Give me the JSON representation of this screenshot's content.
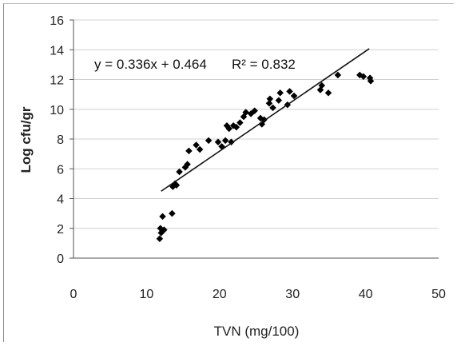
{
  "chart_data": {
    "type": "scatter",
    "xlabel": "TVN (mg/100)",
    "ylabel": "Log cfu/gr",
    "xlim": [
      0,
      50
    ],
    "ylim": [
      0,
      16
    ],
    "xticks": [
      "0",
      "10",
      "20",
      "30",
      "40",
      "50"
    ],
    "yticks": [
      "0",
      "2",
      "4",
      "6",
      "8",
      "10",
      "12",
      "14",
      "16"
    ],
    "grid": "horizontal",
    "legend": "none",
    "point_color": "#000000",
    "trendline": {
      "slope": 0.336,
      "intercept": 0.464,
      "x_range": [
        12,
        40.5
      ],
      "equation_label": "y = 0.336x + 0.464",
      "r2_label": "R² = 0.832"
    },
    "points": [
      {
        "x": 11.8,
        "y": 1.3
      },
      {
        "x": 11.9,
        "y": 2.0
      },
      {
        "x": 12.0,
        "y": 1.7
      },
      {
        "x": 12.2,
        "y": 2.8
      },
      {
        "x": 12.4,
        "y": 1.9
      },
      {
        "x": 13.5,
        "y": 3.0
      },
      {
        "x": 13.6,
        "y": 4.8
      },
      {
        "x": 13.9,
        "y": 5.0
      },
      {
        "x": 14.1,
        "y": 4.9
      },
      {
        "x": 14.5,
        "y": 5.8
      },
      {
        "x": 15.3,
        "y": 6.1
      },
      {
        "x": 15.6,
        "y": 6.3
      },
      {
        "x": 15.8,
        "y": 7.2
      },
      {
        "x": 16.8,
        "y": 7.6
      },
      {
        "x": 17.3,
        "y": 7.3
      },
      {
        "x": 18.5,
        "y": 7.9
      },
      {
        "x": 19.8,
        "y": 7.8
      },
      {
        "x": 20.3,
        "y": 7.5
      },
      {
        "x": 20.8,
        "y": 7.9
      },
      {
        "x": 21.0,
        "y": 8.9
      },
      {
        "x": 21.3,
        "y": 8.7
      },
      {
        "x": 21.6,
        "y": 7.8
      },
      {
        "x": 21.9,
        "y": 8.9
      },
      {
        "x": 22.3,
        "y": 8.8
      },
      {
        "x": 22.8,
        "y": 9.1
      },
      {
        "x": 23.3,
        "y": 9.5
      },
      {
        "x": 23.6,
        "y": 9.8
      },
      {
        "x": 24.3,
        "y": 9.7
      },
      {
        "x": 24.8,
        "y": 9.9
      },
      {
        "x": 25.6,
        "y": 9.4
      },
      {
        "x": 25.8,
        "y": 9.0
      },
      {
        "x": 26.1,
        "y": 9.3
      },
      {
        "x": 26.8,
        "y": 10.4
      },
      {
        "x": 26.9,
        "y": 10.7
      },
      {
        "x": 27.3,
        "y": 10.1
      },
      {
        "x": 28.1,
        "y": 10.6
      },
      {
        "x": 28.3,
        "y": 11.1
      },
      {
        "x": 29.3,
        "y": 10.3
      },
      {
        "x": 29.6,
        "y": 11.2
      },
      {
        "x": 30.2,
        "y": 10.9
      },
      {
        "x": 33.8,
        "y": 11.3
      },
      {
        "x": 34.0,
        "y": 11.6
      },
      {
        "x": 34.9,
        "y": 11.1
      },
      {
        "x": 36.2,
        "y": 12.3
      },
      {
        "x": 39.2,
        "y": 12.3
      },
      {
        "x": 39.7,
        "y": 12.2
      },
      {
        "x": 40.6,
        "y": 12.1
      },
      {
        "x": 40.7,
        "y": 11.9
      }
    ]
  }
}
